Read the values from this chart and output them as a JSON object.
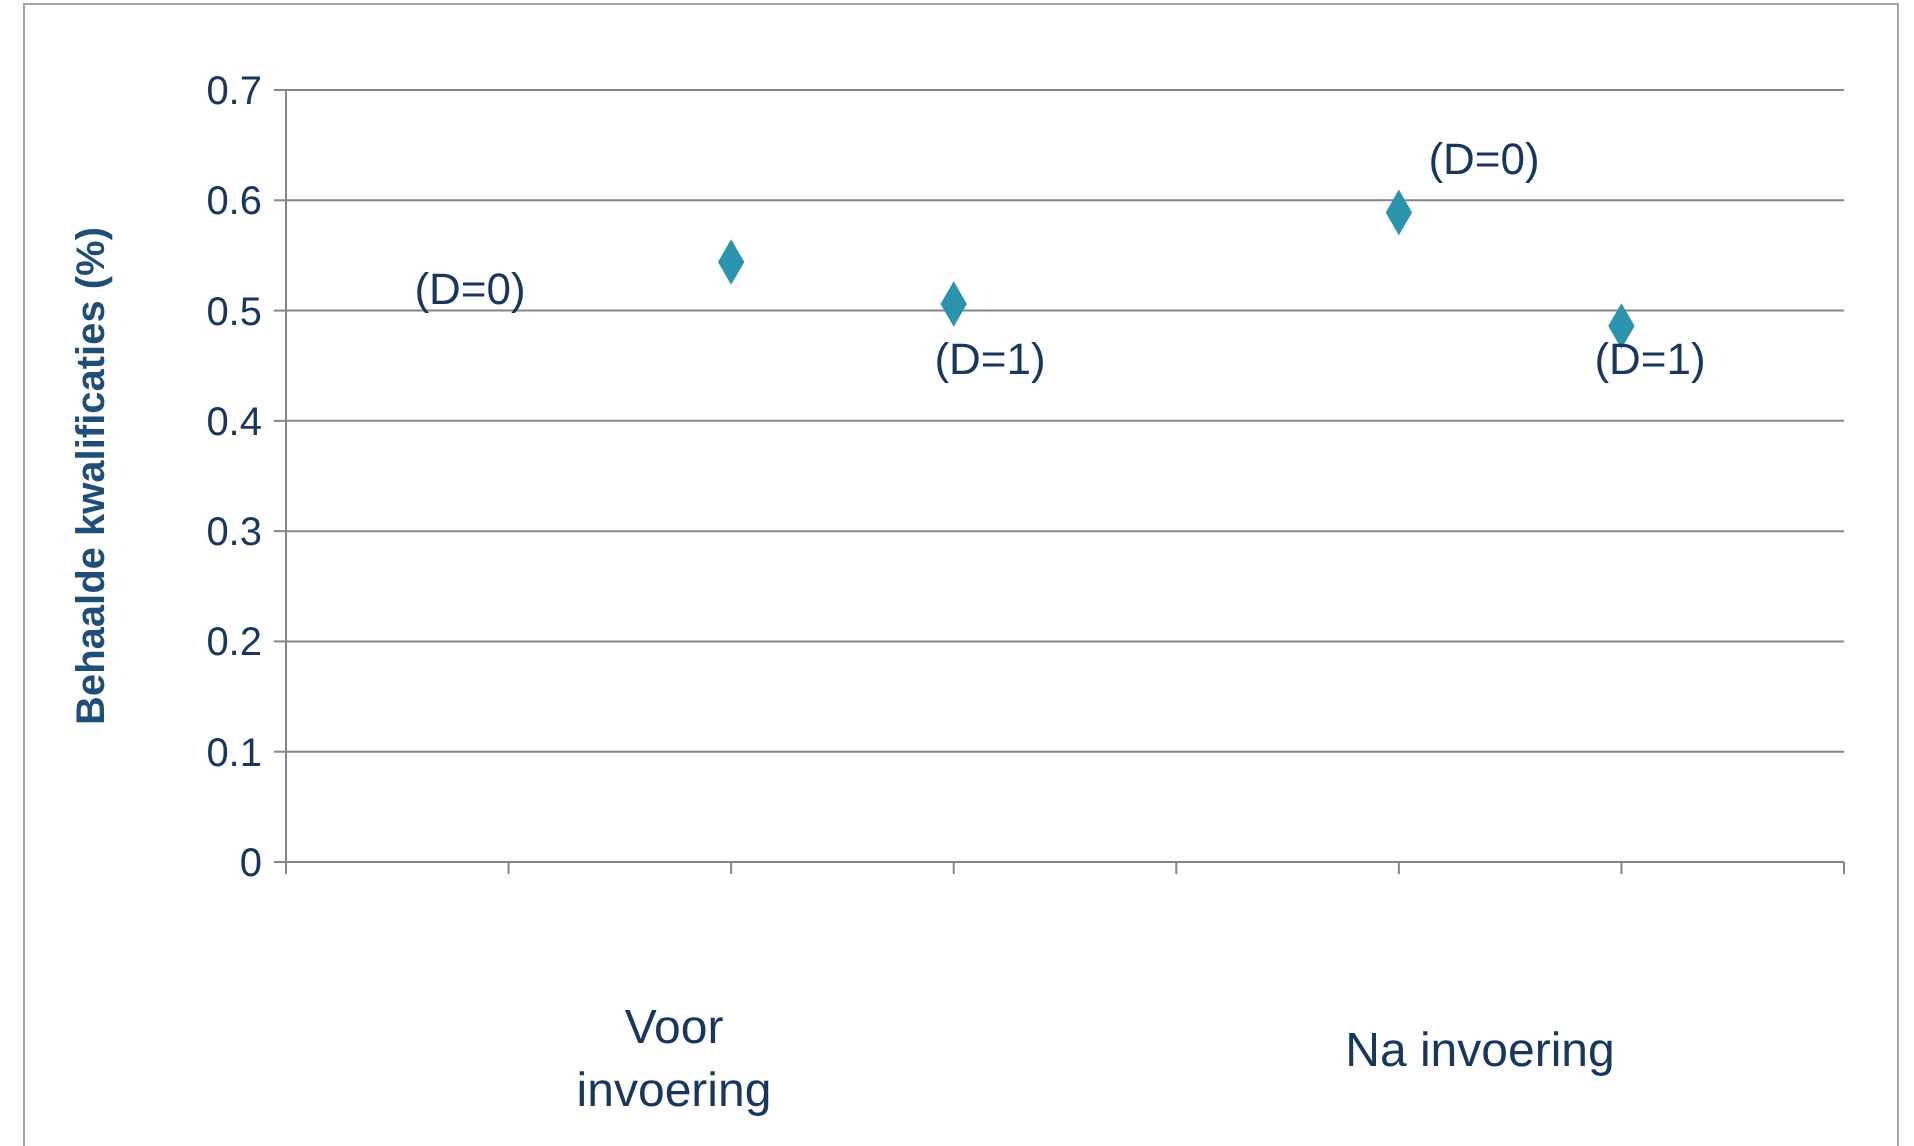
{
  "chart_data": {
    "type": "scatter",
    "ylabel": "Behaalde kwalificaties (%)",
    "categories": [
      null,
      null,
      null,
      null,
      null,
      null,
      null,
      null
    ],
    "series": [
      {
        "color": "#2a93ad",
        "values": [
          null,
          null,
          0.544,
          0.506,
          null,
          0.589,
          0.486,
          null
        ]
      }
    ],
    "ylim": [
      0,
      0.7
    ],
    "yticks": [
      0,
      0.1,
      0.2,
      0.3,
      0.4,
      0.5,
      0.6,
      0.7
    ],
    "grid": "y",
    "marker": "diamond",
    "annotations": [
      "(D=0)",
      "(D=1)",
      "(D=0)",
      "(D=1)",
      "Voor invoering",
      "Na invoering"
    ]
  }
}
